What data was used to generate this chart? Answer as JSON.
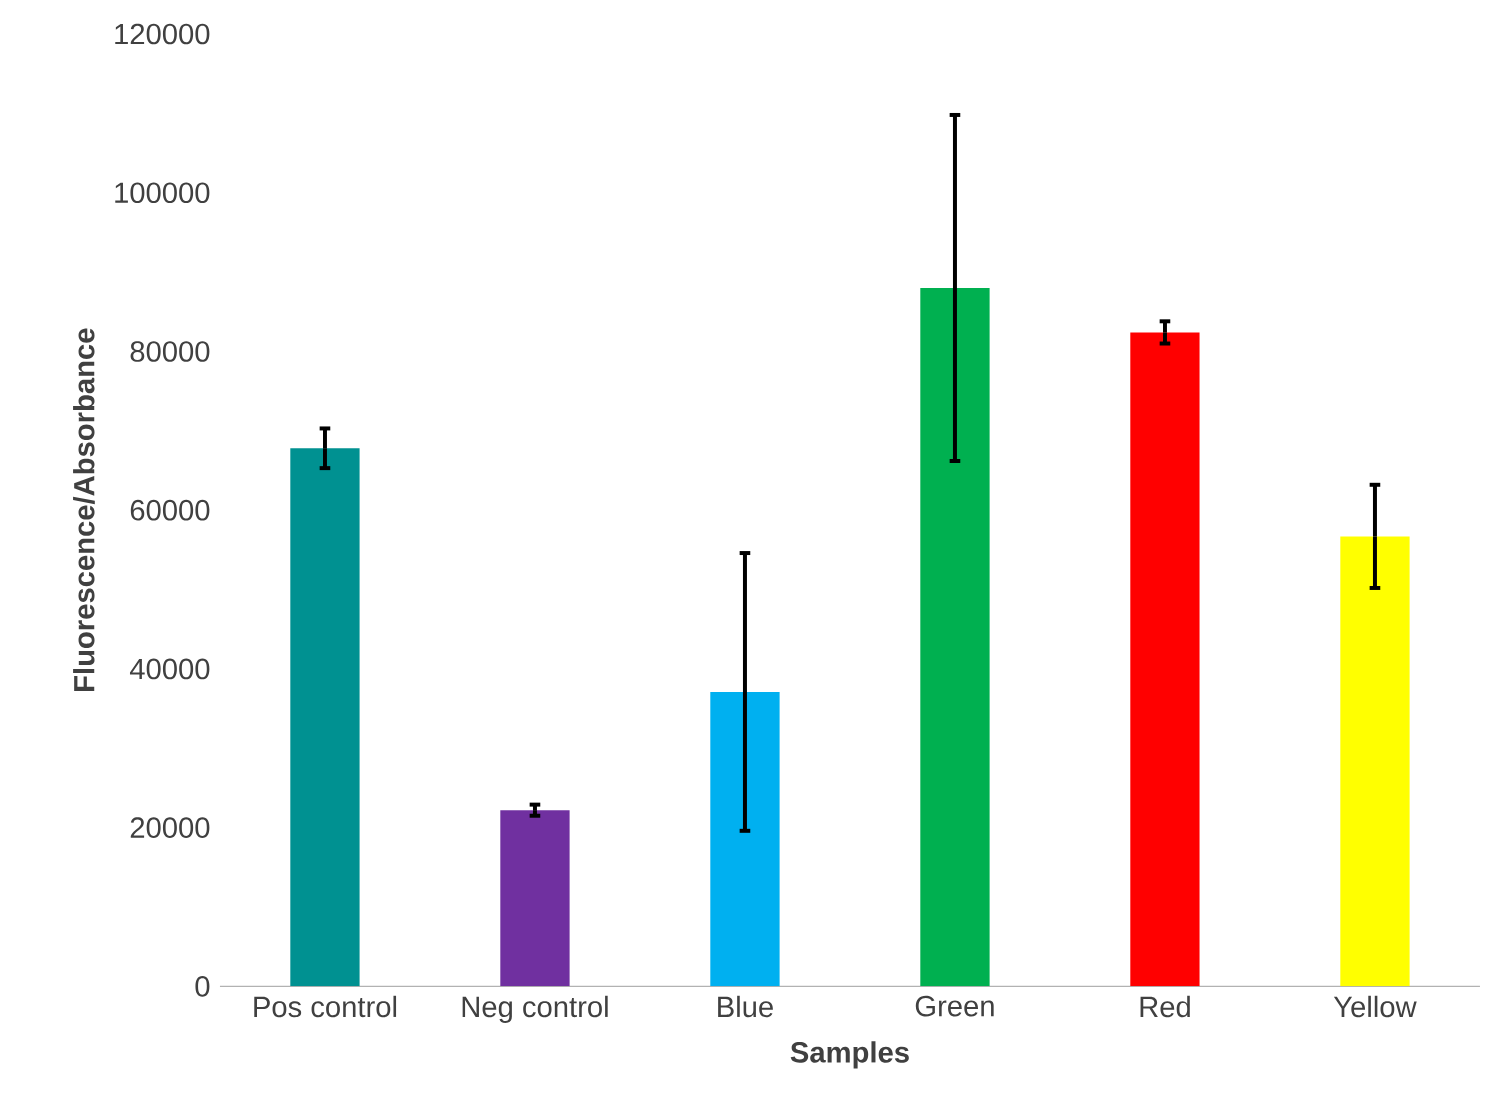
{
  "chart_data": {
    "type": "bar",
    "xlabel": "Samples",
    "ylabel": "Fluorescence/Absorbance",
    "categories": [
      "Pos control",
      "Neg control",
      "Blue",
      "Green",
      "Red",
      "Yellow"
    ],
    "values": [
      67800,
      22200,
      37100,
      88000,
      82400,
      56700
    ],
    "errors": [
      2500,
      700,
      17500,
      21800,
      1400,
      6500
    ],
    "colors": [
      "#009191",
      "#7030a0",
      "#00b0f0",
      "#00b050",
      "#ff0000",
      "#ffff00"
    ],
    "ylim": [
      0,
      120000
    ],
    "yticks": [
      0,
      20000,
      40000,
      60000,
      80000,
      100000,
      120000
    ],
    "grid": false
  }
}
